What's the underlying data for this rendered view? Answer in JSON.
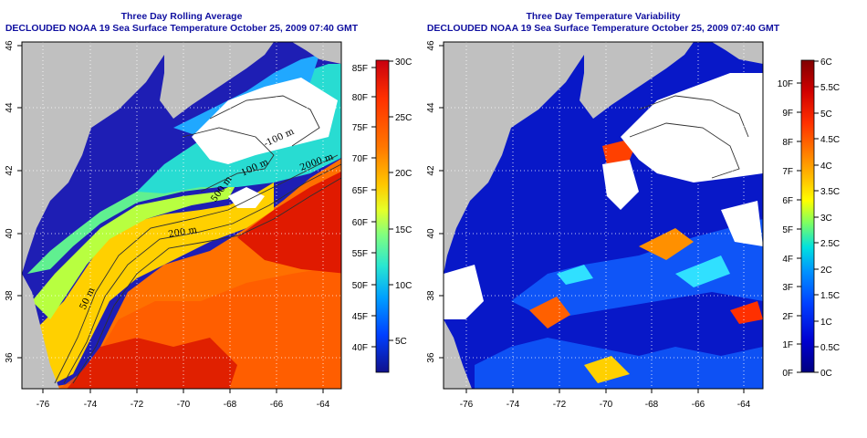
{
  "left_panel": {
    "title_line1": "Three Day Rolling Average",
    "title_line2": "DECLOUDED NOAA 19 Sea Surface Temperature October 25, 2009 07:40 GMT",
    "x_ticks": [
      "-76",
      "-74",
      "-72",
      "-70",
      "-68",
      "-66",
      "-64"
    ],
    "y_ticks": [
      "36",
      "38",
      "40",
      "42",
      "44",
      "46"
    ],
    "contour_labels": [
      "-100 m",
      "100 m",
      "2000 m",
      "500 m",
      "200 m",
      "50 m"
    ],
    "colorbar": {
      "fahrenheit_ticks": [
        "85F",
        "80F",
        "75F",
        "70F",
        "65F",
        "60F",
        "55F",
        "50F",
        "45F",
        "40F"
      ],
      "celsius_ticks": [
        "30C",
        "25C",
        "20C",
        "15C",
        "10C",
        "5C"
      ],
      "colors": [
        "#c80010",
        "#ff3000",
        "#ff7800",
        "#ffc800",
        "#e6ff28",
        "#80ff80",
        "#28e6d2",
        "#00a0ff",
        "#0040ff",
        "#10108c"
      ]
    }
  },
  "right_panel": {
    "title_line1": "Three Day Temperature Variability",
    "title_line2": "DECLOUDED NOAA 19 Sea Surface Temperature October 25, 2009 07:40 GMT",
    "x_ticks": [
      "-76",
      "-74",
      "-72",
      "-70",
      "-68",
      "-66",
      "-64"
    ],
    "y_ticks": [
      "36",
      "38",
      "40",
      "42",
      "44",
      "46"
    ],
    "colorbar": {
      "fahrenheit_ticks": [
        "10F",
        "9F",
        "8F",
        "7F",
        "6F",
        "5F",
        "4F",
        "3F",
        "2F",
        "1F",
        "0F"
      ],
      "celsius_ticks": [
        "6C",
        "5.5C",
        "5C",
        "4.5C",
        "4C",
        "3.5C",
        "3C",
        "2.5C",
        "2C",
        "1.5C",
        "1C",
        "0.5C",
        "0C"
      ],
      "colors": [
        "#800000",
        "#d00000",
        "#ff3000",
        "#ff8000",
        "#ffc000",
        "#ffff00",
        "#80ff60",
        "#00e0e0",
        "#0090ff",
        "#0040ff",
        "#0000d0",
        "#000080"
      ]
    }
  },
  "colors": {
    "land": "#c0c0c0",
    "title": "#1010a0",
    "cloud": "#ffffff"
  }
}
